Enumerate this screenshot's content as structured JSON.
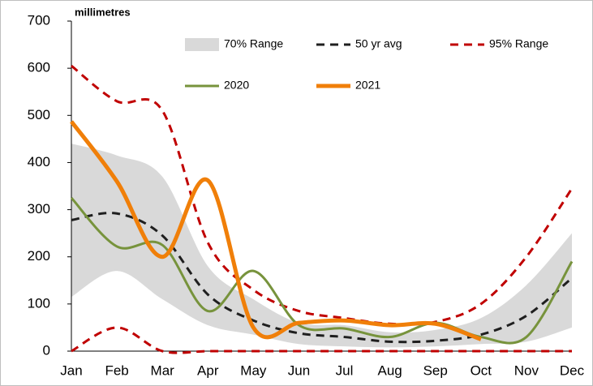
{
  "chart_data": {
    "type": "line",
    "y_label": "millimetres",
    "categories": [
      "Jan",
      "Feb",
      "Mar",
      "Apr",
      "May",
      "Jun",
      "Jul",
      "Aug",
      "Sep",
      "Oct",
      "Nov",
      "Dec"
    ],
    "ylim": [
      0,
      700
    ],
    "yticks": [
      0,
      100,
      200,
      300,
      400,
      500,
      600,
      700
    ],
    "series": [
      {
        "name": "70% Range",
        "kind": "band",
        "color": "#d9d9d9",
        "upper": [
          440,
          415,
          370,
          180,
          110,
          60,
          55,
          40,
          45,
          70,
          140,
          250
        ],
        "lower": [
          115,
          170,
          110,
          55,
          35,
          15,
          10,
          8,
          10,
          15,
          20,
          50
        ]
      },
      {
        "name": "50 yr avg",
        "kind": "line",
        "color": "#1f1f1f",
        "dashed": true,
        "width": 3,
        "values": [
          278,
          292,
          245,
          120,
          65,
          38,
          30,
          20,
          22,
          35,
          75,
          155
        ]
      },
      {
        "name": "95% Range",
        "kind": "range-lines",
        "color": "#c00000",
        "dashed": true,
        "width": 3,
        "upper": [
          605,
          530,
          510,
          230,
          130,
          85,
          70,
          58,
          62,
          100,
          200,
          345
        ],
        "lower": [
          0,
          50,
          0,
          0,
          0,
          0,
          0,
          0,
          0,
          0,
          0,
          0
        ]
      },
      {
        "name": "2020",
        "kind": "line",
        "color": "#77933c",
        "width": 3,
        "values": [
          325,
          222,
          225,
          85,
          170,
          55,
          48,
          30,
          60,
          30,
          30,
          190
        ]
      },
      {
        "name": "2021",
        "kind": "line",
        "color": "#f07f09",
        "width": 5,
        "values": [
          487,
          360,
          200,
          362,
          50,
          60,
          65,
          55,
          58,
          25,
          null,
          null
        ]
      }
    ]
  }
}
